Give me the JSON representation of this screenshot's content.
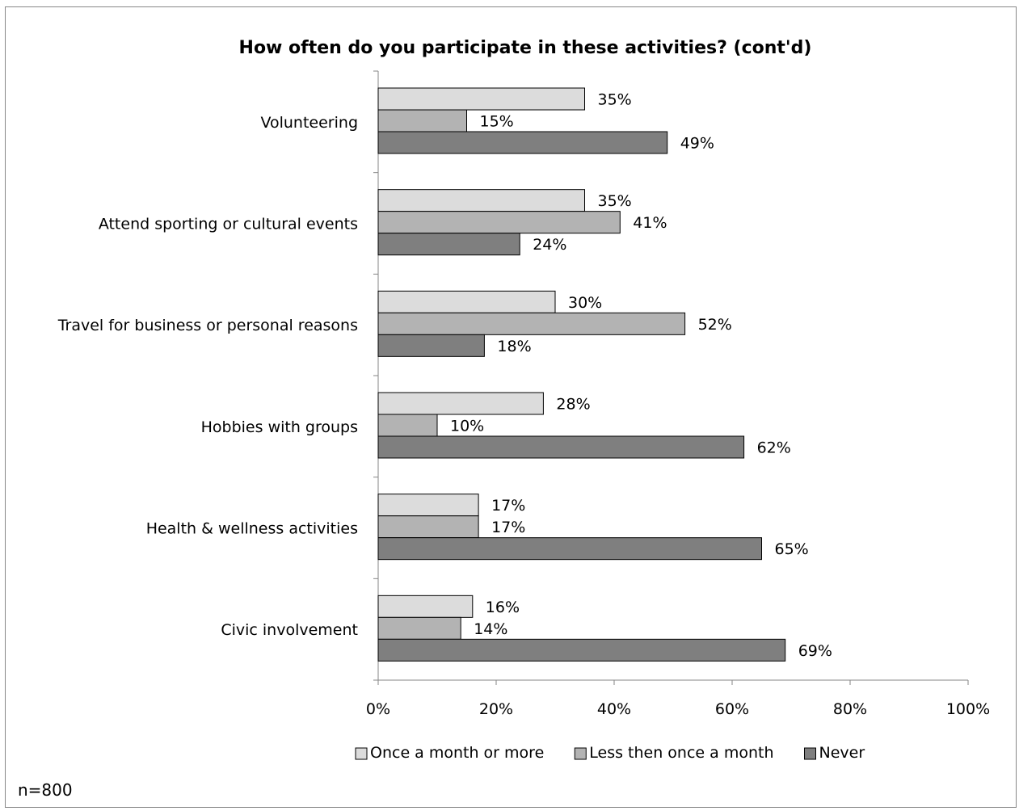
{
  "note": "n=800",
  "chart_data": {
    "type": "bar",
    "orientation": "horizontal",
    "title": "How often do you participate in these activities? (cont'd)",
    "categories": [
      "Volunteering",
      "Attend sporting or cultural events",
      "Travel for business or personal reasons",
      "Hobbies with groups",
      "Health & wellness activities",
      "Civic involvement"
    ],
    "series": [
      {
        "name": "Once a month or more",
        "color": "#dcdcdc",
        "values": [
          35,
          35,
          30,
          28,
          17,
          16
        ]
      },
      {
        "name": "Less then once a month",
        "color": "#b3b3b3",
        "values": [
          15,
          41,
          52,
          10,
          17,
          14
        ]
      },
      {
        "name": "Never",
        "color": "#7f7f7f",
        "values": [
          49,
          24,
          18,
          62,
          65,
          69
        ]
      }
    ],
    "value_suffix": "%",
    "xlim": [
      0,
      100
    ],
    "xticks": [
      0,
      20,
      40,
      60,
      80,
      100
    ],
    "xtick_labels": [
      "0%",
      "20%",
      "40%",
      "60%",
      "80%",
      "100%"
    ],
    "grid": false,
    "legend_position": "bottom"
  }
}
